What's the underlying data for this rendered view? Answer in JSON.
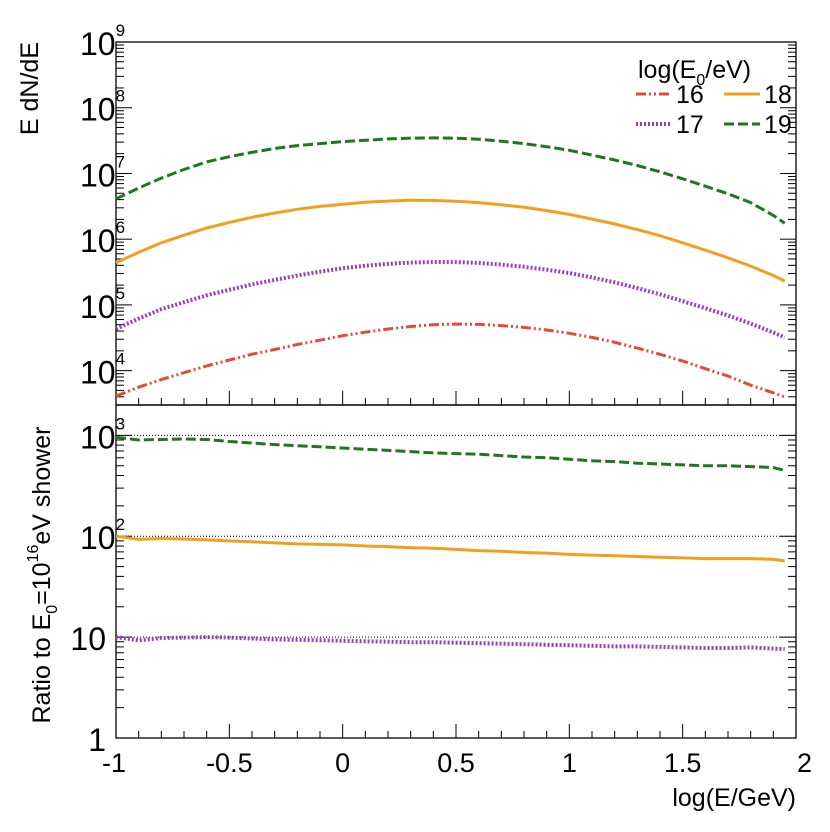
{
  "chart_data": [
    {
      "type": "line",
      "panel": "top",
      "ylabel": "E dN/dE",
      "yscale": "log",
      "xlim": [
        -1,
        2
      ],
      "ylim": [
        3000,
        1000000000
      ],
      "grid": false,
      "legend": {
        "title": "log(E₀/eV)",
        "title_main": "log(E",
        "title_sub": "0",
        "title_end": "/eV)",
        "placement": "top-right",
        "entries": [
          "16",
          "18",
          "17",
          "19"
        ]
      },
      "y_ticks": [
        {
          "base": "10",
          "exp": "4",
          "value": 10000
        },
        {
          "base": "10",
          "exp": "5",
          "value": 100000
        },
        {
          "base": "10",
          "exp": "6",
          "value": 1000000
        },
        {
          "base": "10",
          "exp": "7",
          "value": 10000000
        },
        {
          "base": "10",
          "exp": "8",
          "value": 100000000
        },
        {
          "base": "10",
          "exp": "9",
          "value": 1000000000
        }
      ],
      "x": [
        -1.0,
        -0.9,
        -0.8,
        -0.7,
        -0.6,
        -0.5,
        -0.4,
        -0.3,
        -0.2,
        -0.1,
        0.0,
        0.1,
        0.2,
        0.3,
        0.4,
        0.5,
        0.6,
        0.7,
        0.8,
        0.9,
        1.0,
        1.1,
        1.2,
        1.3,
        1.4,
        1.5,
        1.6,
        1.7,
        1.8,
        1.9,
        1.95
      ],
      "series": [
        {
          "name": "16",
          "color": "#e8483c",
          "dash": "10 3 2 3 2 3",
          "values": [
            4100,
            5600,
            7300,
            9300,
            11800,
            14500,
            17800,
            21000,
            25000,
            29000,
            34000,
            38500,
            43000,
            47000,
            50000,
            51000,
            50500,
            48500,
            45500,
            41500,
            37000,
            32000,
            27000,
            22000,
            17700,
            14000,
            10700,
            8300,
            6000,
            4600,
            4000
          ]
        },
        {
          "name": "17",
          "color": "#a335c8",
          "dash": "2 2",
          "values": [
            43000,
            62000,
            86000,
            110000,
            140000,
            170000,
            205000,
            240000,
            280000,
            320000,
            360000,
            395000,
            420000,
            440000,
            450000,
            448000,
            435000,
            410000,
            380000,
            345000,
            305000,
            262000,
            220000,
            180000,
            145000,
            114000,
            89000,
            69000,
            52000,
            38000,
            32000
          ]
        },
        {
          "name": "18",
          "color": "#f0a01e",
          "dash": "",
          "values": [
            440000,
            630000,
            880000,
            1150000,
            1480000,
            1800000,
            2150000,
            2500000,
            2850000,
            3150000,
            3400000,
            3650000,
            3800000,
            3900000,
            3880000,
            3780000,
            3600000,
            3350000,
            3050000,
            2720000,
            2380000,
            2020000,
            1700000,
            1400000,
            1130000,
            880000,
            680000,
            520000,
            390000,
            280000,
            230000
          ]
        },
        {
          "name": "19",
          "color": "#1e781e",
          "dash": "10 4",
          "values": [
            4100000,
            6000000,
            8500000,
            11500000,
            15000000,
            18000000,
            21000000,
            24000000,
            26500000,
            28500000,
            30500000,
            32000000,
            33500000,
            34500000,
            34800000,
            34400000,
            33200000,
            31000000,
            28500000,
            25500000,
            22500000,
            19000000,
            16000000,
            13200000,
            10600000,
            8300000,
            6400000,
            4900000,
            3600000,
            2300000,
            1750000
          ]
        }
      ]
    },
    {
      "type": "line",
      "panel": "bottom",
      "ylabel": "Ratio to E₀=10¹⁶eV shower",
      "ylabel_parts": {
        "a": "Ratio to E",
        "sub": "0",
        "b": "=10",
        "sup": "16",
        "c": "eV shower"
      },
      "yscale": "log",
      "xlabel": "log(E/GeV)",
      "xlim": [
        -1,
        2
      ],
      "ylim": [
        1,
        2000
      ],
      "grid": false,
      "reference_lines": [
        10,
        100,
        1000
      ],
      "y_ticks": [
        {
          "base": "1",
          "exp": "",
          "value": 1
        },
        {
          "base": "10",
          "exp": "",
          "value": 10
        },
        {
          "base": "10",
          "exp": "2",
          "value": 100
        },
        {
          "base": "10",
          "exp": "3",
          "value": 1000
        }
      ],
      "x_ticks": [
        "-1",
        "-0.5",
        "0",
        "0.5",
        "1",
        "1.5",
        "2"
      ],
      "x_tick_values": [
        -1,
        -0.5,
        0,
        0.5,
        1,
        1.5,
        2
      ],
      "x": [
        -1.0,
        -0.9,
        -0.8,
        -0.7,
        -0.6,
        -0.5,
        -0.4,
        -0.3,
        -0.2,
        -0.1,
        0.0,
        0.1,
        0.2,
        0.3,
        0.4,
        0.5,
        0.6,
        0.7,
        0.8,
        0.9,
        1.0,
        1.1,
        1.2,
        1.3,
        1.4,
        1.5,
        1.6,
        1.7,
        1.8,
        1.9,
        1.95
      ],
      "series": [
        {
          "name": "17",
          "color": "#a335c8",
          "dash": "2 2",
          "values": [
            10.0,
            9.3,
            9.8,
            9.9,
            10.0,
            9.9,
            9.7,
            9.5,
            9.4,
            9.3,
            9.2,
            9.1,
            9.0,
            8.9,
            8.9,
            8.8,
            8.7,
            8.6,
            8.5,
            8.4,
            8.3,
            8.2,
            8.1,
            8.1,
            8.0,
            7.9,
            7.8,
            7.8,
            7.9,
            7.7,
            7.6
          ]
        },
        {
          "name": "18",
          "color": "#f0a01e",
          "dash": "",
          "values": [
            100,
            93,
            95,
            94,
            92,
            90,
            88,
            86,
            84,
            83,
            82,
            80,
            79,
            77,
            76,
            74,
            72,
            71,
            69,
            68,
            66,
            65,
            64,
            63,
            62,
            61,
            60,
            60,
            60,
            59,
            57
          ]
        },
        {
          "name": "19",
          "color": "#1e781e",
          "dash": "10 4",
          "values": [
            960,
            900,
            910,
            920,
            910,
            870,
            840,
            810,
            790,
            770,
            750,
            730,
            710,
            690,
            670,
            660,
            650,
            630,
            610,
            600,
            580,
            560,
            550,
            530,
            520,
            510,
            500,
            500,
            490,
            480,
            450
          ]
        }
      ]
    }
  ]
}
